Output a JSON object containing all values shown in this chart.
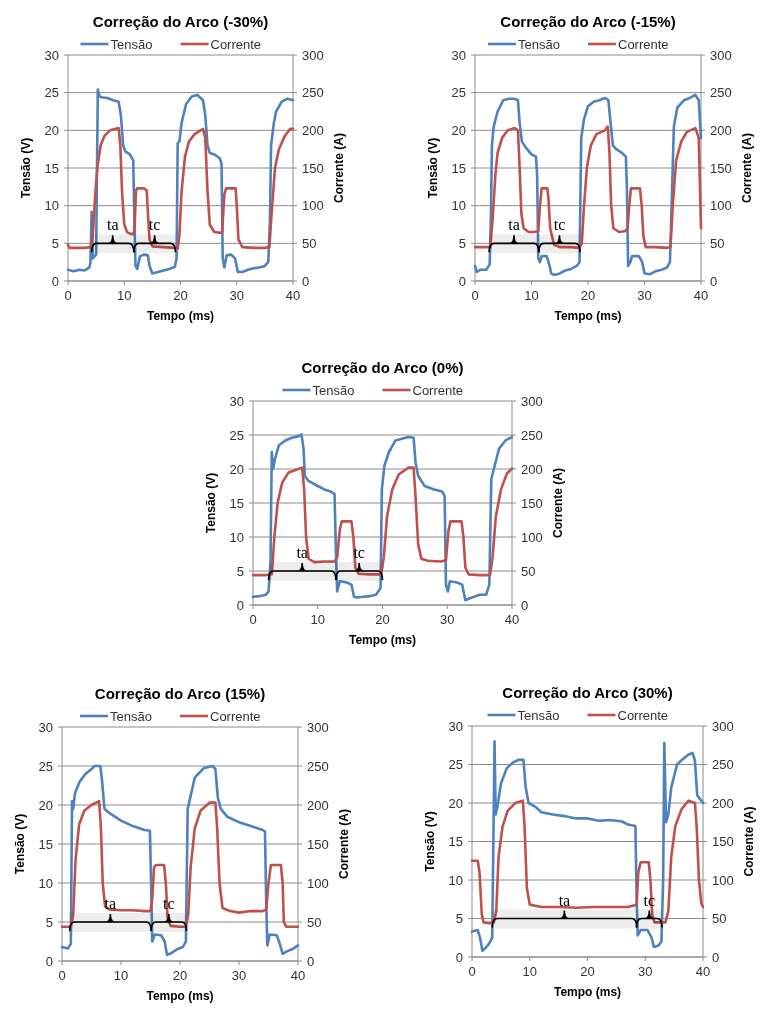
{
  "chart_data": [
    {
      "type": "line",
      "title": "Correção do Arco (-30%)",
      "xlabel": "Tempo (ms)",
      "ylabel": "Tensão (V)",
      "y2label": "Corrente (A)",
      "xlim": [
        0,
        40
      ],
      "xticks": [
        0,
        10,
        20,
        30,
        40
      ],
      "ylim": [
        0,
        30
      ],
      "yticks": [
        0,
        5,
        10,
        15,
        20,
        25,
        30
      ],
      "y2lim": [
        0,
        300
      ],
      "y2ticks": [
        0,
        50,
        100,
        150,
        200,
        250,
        300
      ],
      "grid": "y",
      "legend": "top",
      "series": [
        {
          "name": "Tensão",
          "color": "#4f81bd",
          "x": [
            0,
            1,
            2,
            3,
            3.8,
            4.0,
            4.2,
            4.4,
            5.0,
            5.3,
            5.6,
            6,
            7,
            8,
            9,
            9.4,
            9.8,
            10.2,
            11,
            11.6,
            11.8,
            12,
            12.3,
            12.8,
            13.5,
            14.2,
            14.5,
            15,
            16,
            17,
            18,
            19,
            19.3,
            19.5,
            19.8,
            20.2,
            21,
            22,
            23,
            24,
            24.4,
            24.8,
            25.2,
            26,
            27,
            27.3,
            27.5,
            27.8,
            28.2,
            29,
            29.7,
            30.2,
            31,
            32,
            33,
            34,
            35,
            35.6,
            35.9,
            36.1,
            36.6,
            37,
            38,
            39,
            40
          ],
          "values": [
            1.5,
            1.3,
            1.5,
            1.4,
            1.8,
            2.5,
            9.2,
            3.0,
            3.5,
            25.4,
            24.5,
            24.4,
            24.3,
            24.0,
            23.8,
            22,
            18,
            17.2,
            16.8,
            16.0,
            8,
            2.0,
            1.6,
            3.3,
            3.5,
            3.4,
            2.0,
            1.0,
            1.2,
            1.4,
            1.6,
            1.9,
            3.0,
            18.3,
            18.5,
            21,
            23.5,
            24.5,
            24.7,
            24.0,
            22,
            18,
            17,
            16.8,
            16.3,
            15.5,
            3,
            1.8,
            3.4,
            3.5,
            3.0,
            1.2,
            1.2,
            1.5,
            1.7,
            1.8,
            2.0,
            2.5,
            8,
            18,
            21,
            22.5,
            23.8,
            24.2,
            24.0
          ]
        },
        {
          "name": "Corrente",
          "color": "#c0504d",
          "axis": "y2",
          "x": [
            0,
            0.3,
            1,
            2,
            3,
            4,
            4.4,
            4.8,
            5.2,
            5.8,
            6.5,
            7.5,
            9,
            9.3,
            9.6,
            10,
            10.5,
            11,
            11.5,
            11.8,
            12.1,
            12.3,
            13.5,
            14.0,
            14.2,
            14.5,
            15,
            17,
            19,
            19.5,
            19.8,
            20.2,
            20.8,
            21.5,
            22.5,
            24,
            24.4,
            24.8,
            25.2,
            26,
            27,
            27.4,
            27.8,
            28.1,
            29.8,
            30,
            30.3,
            31,
            33,
            35,
            35.8,
            36.2,
            36.8,
            37.5,
            38.5,
            39.5,
            40
          ],
          "values": [
            48,
            44,
            44,
            44,
            44,
            45,
            60,
            110,
            150,
            180,
            193,
            200,
            203,
            180,
            120,
            75,
            65,
            63,
            62,
            65,
            120,
            123,
            123,
            120,
            90,
            55,
            46,
            45,
            44,
            43,
            60,
            120,
            165,
            185,
            195,
            202,
            190,
            120,
            75,
            65,
            64,
            65,
            115,
            123,
            123,
            100,
            55,
            45,
            44,
            44,
            45,
            90,
            150,
            175,
            192,
            202,
            202
          ]
        }
      ],
      "bands": [
        {
          "axis": "x",
          "from": 4.2,
          "to": 11.7,
          "label": "ta",
          "color": "#000000"
        },
        {
          "axis": "x",
          "from": 11.7,
          "to": 19.1,
          "label": "tc",
          "color": "#000000"
        }
      ]
    },
    {
      "type": "line",
      "title": "Correção do Arco (-15%)",
      "xlabel": "Tempo (ms)",
      "ylabel": "Tensão (V)",
      "y2label": "Corrente (A)",
      "xlim": [
        0,
        40
      ],
      "xticks": [
        0,
        10,
        20,
        30,
        40
      ],
      "ylim": [
        0,
        30
      ],
      "yticks": [
        0,
        5,
        10,
        15,
        20,
        25,
        30
      ],
      "y2lim": [
        0,
        300
      ],
      "y2ticks": [
        0,
        50,
        100,
        150,
        200,
        250,
        300
      ],
      "grid": "y",
      "legend": "top",
      "series": [
        {
          "name": "Tensão",
          "color": "#4f81bd",
          "x": [
            0,
            0.3,
            1,
            2,
            2.6,
            2.8,
            3.0,
            3.3,
            4,
            5,
            6,
            7,
            7.6,
            7.9,
            8.3,
            9,
            10,
            10.8,
            11.0,
            11.2,
            11.5,
            11.8,
            12.7,
            13.2,
            13.5,
            14,
            15,
            16,
            17,
            18,
            18.5,
            18.8,
            19.3,
            20,
            21,
            22,
            23,
            23.6,
            24,
            24.4,
            25,
            26,
            26.7,
            26.9,
            27.1,
            27.5,
            27.8,
            29,
            29.6,
            30,
            31,
            32,
            33,
            34,
            34.5,
            34.8,
            35.2,
            35.8,
            37,
            38,
            39,
            39.6,
            40
          ],
          "values": [
            2.0,
            1.2,
            1.5,
            1.5,
            2.2,
            8,
            18,
            20.5,
            22.5,
            24,
            24.2,
            24.2,
            24.0,
            21,
            18.5,
            17.7,
            16.8,
            16.5,
            14,
            3,
            2.5,
            3.3,
            3.3,
            2.0,
            1.0,
            0.8,
            1.0,
            1.4,
            1.6,
            2.0,
            2.5,
            19.0,
            21.5,
            23.2,
            23.8,
            24.0,
            24.3,
            24.0,
            21,
            18,
            17.5,
            17.0,
            16.5,
            12,
            2.0,
            2.5,
            3.3,
            3.3,
            2.5,
            1.0,
            0.9,
            1.3,
            1.5,
            1.8,
            2.5,
            10,
            20.5,
            23,
            24,
            24.3,
            24.7,
            24.0,
            19
          ]
        },
        {
          "name": "Corrente",
          "color": "#c0504d",
          "axis": "y2",
          "x": [
            0,
            2,
            2.7,
            3.1,
            3.6,
            4,
            4.8,
            5.8,
            7,
            7.6,
            7.9,
            8.2,
            8.6,
            9.5,
            10.5,
            11.2,
            11.5,
            11.8,
            12.8,
            13.0,
            13.3,
            14,
            15,
            17,
            18.5,
            18.9,
            19.3,
            19.8,
            20.5,
            21.5,
            23,
            23.5,
            23.8,
            24.1,
            24.5,
            25.5,
            26.5,
            27,
            27.3,
            27.6,
            29.2,
            29.5,
            29.8,
            30.2,
            32,
            34,
            34.6,
            35,
            35.6,
            36.5,
            37.5,
            39,
            39.6,
            40
          ],
          "values": [
            45,
            45,
            45,
            80,
            140,
            170,
            190,
            200,
            203,
            200,
            150,
            90,
            70,
            65,
            65,
            66,
            100,
            123,
            123,
            110,
            70,
            48,
            45,
            45,
            44,
            50,
            100,
            150,
            180,
            195,
            200,
            205,
            170,
            100,
            70,
            65,
            66,
            70,
            100,
            123,
            123,
            100,
            60,
            45,
            45,
            44,
            45,
            100,
            160,
            185,
            198,
            203,
            190,
            70
          ]
        }
      ],
      "bands": [
        {
          "axis": "x",
          "from": 2.5,
          "to": 11.3,
          "label": "ta",
          "color": "#000000"
        },
        {
          "axis": "x",
          "from": 11.3,
          "to": 18.6,
          "label": "tc",
          "color": "#000000"
        }
      ]
    },
    {
      "type": "line",
      "title": "Correção do Arco (0%)",
      "xlabel": "Tempo (ms)",
      "ylabel": "Tensão (V)",
      "y2label": "Corrente (A)",
      "xlim": [
        0,
        40
      ],
      "xticks": [
        0,
        10,
        20,
        30,
        40
      ],
      "ylim": [
        0,
        30
      ],
      "yticks": [
        0,
        5,
        10,
        15,
        20,
        25,
        30
      ],
      "y2lim": [
        0,
        300
      ],
      "y2ticks": [
        0,
        50,
        100,
        150,
        200,
        250,
        300
      ],
      "grid": "y",
      "legend": "top",
      "series": [
        {
          "name": "Tensão",
          "color": "#4f81bd",
          "x": [
            0,
            1,
            2,
            2.4,
            2.7,
            2.9,
            3.1,
            3.4,
            4,
            5,
            6,
            7,
            7.5,
            7.8,
            8,
            8.5,
            10,
            11,
            12,
            12.6,
            12.8,
            13.0,
            13.4,
            14.5,
            15.2,
            15.6,
            16,
            18,
            19,
            19.7,
            19.9,
            20.3,
            21,
            22,
            24,
            24.8,
            25.1,
            25.5,
            26.5,
            28,
            29.2,
            29.6,
            29.8,
            30.1,
            30.4,
            31.5,
            32.3,
            32.8,
            33.5,
            35,
            36,
            36.5,
            36.8,
            37.2,
            38,
            39,
            40
          ],
          "values": [
            1.2,
            1.3,
            1.5,
            2.0,
            6,
            22.5,
            20,
            21.5,
            23.5,
            24.2,
            24.6,
            24.8,
            25.1,
            23,
            19.0,
            18.3,
            17.5,
            17.0,
            16.7,
            16.3,
            8,
            2.0,
            3.5,
            3.3,
            3.0,
            1.2,
            1.1,
            1.3,
            1.5,
            2.5,
            17,
            20.5,
            22.5,
            24.2,
            24.7,
            24.6,
            21,
            19,
            17.5,
            17.0,
            16.7,
            16,
            3.0,
            2.0,
            3.5,
            3.3,
            3.0,
            0.7,
            1.0,
            1.5,
            1.5,
            3,
            18.5,
            20,
            23,
            24.2,
            24.7
          ]
        },
        {
          "name": "Corrente",
          "color": "#c0504d",
          "axis": "y2",
          "x": [
            0,
            2,
            2.9,
            3.3,
            3.8,
            4.5,
            5.5,
            7,
            7.6,
            7.9,
            8.2,
            8.6,
            9.5,
            11,
            12.6,
            13,
            13.4,
            13.7,
            15.2,
            15.5,
            15.8,
            16.3,
            18,
            19.8,
            20.2,
            20.7,
            21.5,
            22.5,
            24,
            24.8,
            25.1,
            25.5,
            26,
            27,
            29,
            29.8,
            30.2,
            30.5,
            32.2,
            32.5,
            32.8,
            33.3,
            35,
            36.6,
            37,
            37.5,
            38.3,
            39.2,
            40
          ],
          "values": [
            44,
            44,
            45,
            100,
            150,
            180,
            195,
            200,
            202,
            170,
            100,
            68,
            63,
            64,
            64,
            70,
            110,
            123,
            123,
            100,
            55,
            46,
            45,
            45,
            70,
            130,
            170,
            192,
            202,
            202,
            160,
            90,
            68,
            65,
            64,
            66,
            110,
            123,
            123,
            100,
            55,
            45,
            44,
            44,
            70,
            130,
            170,
            193,
            201
          ]
        }
      ],
      "bands": [
        {
          "axis": "x",
          "from": 2.4,
          "to": 12.8,
          "label": "ta",
          "color": "#000000"
        },
        {
          "axis": "x",
          "from": 12.8,
          "to": 20.0,
          "label": "tc",
          "color": "#000000"
        }
      ]
    },
    {
      "type": "line",
      "title": "Correção do Arco (15%)",
      "xlabel": "Tempo (ms)",
      "ylabel": "Tensão (V)",
      "y2label": "Corrente (A)",
      "xlim": [
        0,
        40
      ],
      "xticks": [
        0,
        10,
        20,
        30,
        40
      ],
      "ylim": [
        0,
        30
      ],
      "yticks": [
        0,
        5,
        10,
        15,
        20,
        25,
        30
      ],
      "y2lim": [
        0,
        300
      ],
      "y2ticks": [
        0,
        50,
        100,
        150,
        200,
        250,
        300
      ],
      "grid": "y",
      "legend": "top",
      "series": [
        {
          "name": "Tensão",
          "color": "#4f81bd",
          "x": [
            0,
            1,
            1.5,
            1.7,
            1.9,
            2.2,
            3,
            4,
            5,
            5.5,
            6.5,
            6.8,
            7.2,
            8,
            10,
            12,
            14,
            14.9,
            15.1,
            15.3,
            15.7,
            16.8,
            17.4,
            17.8,
            18.5,
            19.5,
            20.5,
            21,
            21.3,
            21.6,
            22.5,
            24,
            25.5,
            26,
            26.4,
            26.9,
            28,
            30,
            32,
            34,
            34.4,
            34.6,
            34.8,
            35.2,
            36.4,
            37,
            37.4,
            38,
            39,
            40
          ],
          "values": [
            1.8,
            1.6,
            2.2,
            20.5,
            19.5,
            21.5,
            23,
            24,
            24.6,
            25,
            25,
            23,
            19.5,
            19,
            18,
            17.3,
            16.8,
            16.7,
            10,
            2.5,
            3.4,
            3.3,
            2.5,
            0.8,
            1.0,
            1.5,
            1.8,
            2.5,
            19.5,
            20.5,
            23.5,
            24.7,
            25.0,
            24.6,
            21,
            19.5,
            18.5,
            17.8,
            17.3,
            16.8,
            16.6,
            8,
            2.0,
            3.4,
            3.3,
            2.0,
            0.9,
            1.2,
            1.5,
            2.0
          ]
        },
        {
          "name": "Corrente",
          "color": "#c0504d",
          "axis": "y2",
          "x": [
            0,
            1.5,
            1.9,
            2.3,
            2.9,
            3.8,
            5,
            6.3,
            6.6,
            6.9,
            7.3,
            8,
            10,
            12,
            14,
            15,
            15.3,
            15.6,
            15.9,
            17.3,
            17.6,
            17.9,
            18.4,
            20,
            21,
            21.4,
            21.8,
            22.5,
            23.5,
            25,
            26,
            26.3,
            26.7,
            27.2,
            28.5,
            30,
            32,
            34,
            34.6,
            35,
            35.4,
            37.1,
            37.4,
            37.6,
            38,
            40
          ],
          "values": [
            44,
            44,
            60,
            130,
            175,
            193,
            200,
            205,
            170,
            100,
            70,
            66,
            65,
            65,
            64,
            64,
            80,
            120,
            123,
            123,
            100,
            55,
            45,
            44,
            44,
            60,
            120,
            170,
            193,
            203,
            203,
            170,
            100,
            68,
            64,
            62,
            64,
            64,
            66,
            100,
            123,
            123,
            100,
            50,
            44,
            44
          ]
        }
      ],
      "bands": [
        {
          "axis": "x",
          "from": 1.3,
          "to": 15.1,
          "label": "ta",
          "color": "#000000"
        },
        {
          "axis": "x",
          "from": 15.1,
          "to": 21.1,
          "label": "tc",
          "color": "#000000"
        }
      ]
    },
    {
      "type": "line",
      "title": "Correção do Arco (30%)",
      "xlabel": "Tempo (ms)",
      "ylabel": "Tensão (V)",
      "y2label": "Corrente (A)",
      "xlim": [
        0,
        40
      ],
      "xticks": [
        0,
        10,
        20,
        30,
        40
      ],
      "ylim": [
        0,
        30
      ],
      "yticks": [
        0,
        5,
        10,
        15,
        20,
        25,
        30
      ],
      "y2lim": [
        0,
        300
      ],
      "y2ticks": [
        0,
        50,
        100,
        150,
        200,
        250,
        300
      ],
      "grid": "y",
      "legend": "top",
      "series": [
        {
          "name": "Tensão",
          "color": "#4f81bd",
          "x": [
            0,
            1,
            1.4,
            1.8,
            2.5,
            3,
            3.5,
            3.7,
            3.9,
            4.1,
            4.4,
            5,
            6,
            7,
            8,
            8.9,
            9.3,
            9.8,
            11,
            12,
            14,
            16,
            18,
            20,
            22,
            24,
            26,
            27,
            28.3,
            28.5,
            28.7,
            29.2,
            30.4,
            31.1,
            31.5,
            32.3,
            32.8,
            33.1,
            33.3,
            33.6,
            34.0,
            34.5,
            35.5,
            36.5,
            37.5,
            38.2,
            38.6,
            39,
            39.5,
            40
          ],
          "values": [
            3.3,
            3.5,
            2.5,
            0.8,
            1.3,
            1.8,
            2.5,
            15,
            28,
            18.5,
            19.5,
            22.5,
            24.5,
            25.2,
            25.6,
            25.6,
            22,
            20,
            19.5,
            18.8,
            18.5,
            18.3,
            18.0,
            18.0,
            17.7,
            17.8,
            17.6,
            17.2,
            17.0,
            8,
            2.8,
            3.5,
            3.5,
            2.5,
            1.3,
            1.5,
            2.0,
            10,
            27.8,
            17.5,
            18.5,
            22,
            25,
            25.7,
            26.3,
            26.5,
            25.5,
            21,
            20.5,
            20.0
          ]
        },
        {
          "name": "Corrente",
          "color": "#c0504d",
          "axis": "y2",
          "x": [
            0,
            1.0,
            1.3,
            1.7,
            2.0,
            3,
            3.8,
            4.2,
            4.6,
            5.3,
            6.2,
            7.5,
            8.8,
            9.1,
            9.5,
            10,
            12,
            15,
            18,
            21,
            24,
            27,
            28.5,
            28.8,
            29.2,
            30.6,
            30.9,
            31.2,
            31.6,
            33.5,
            34.0,
            34.5,
            35.2,
            36.3,
            37.5,
            38.6,
            38.9,
            39.3,
            39.7,
            40
          ],
          "values": [
            125,
            125,
            110,
            55,
            45,
            44,
            45,
            60,
            130,
            170,
            190,
            200,
            203,
            170,
            90,
            68,
            65,
            65,
            64,
            65,
            65,
            65,
            68,
            110,
            123,
            123,
            100,
            55,
            45,
            45,
            60,
            130,
            170,
            192,
            203,
            200,
            170,
            100,
            70,
            65
          ]
        }
      ],
      "bands": [
        {
          "axis": "x",
          "from": 3.5,
          "to": 28.5,
          "label": "ta",
          "color": "#000000"
        },
        {
          "axis": "x",
          "from": 28.5,
          "to": 32.9,
          "label": "tc",
          "color": "#000000"
        }
      ]
    }
  ]
}
